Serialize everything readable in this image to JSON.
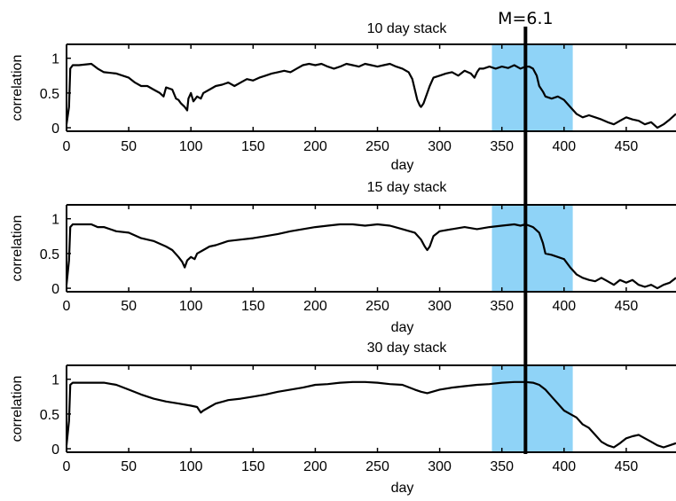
{
  "event": {
    "label": "M=6.1",
    "day": 369,
    "highlight_range": [
      342,
      407
    ],
    "highlight_color": "#8fd3f7",
    "line_color": "#000000"
  },
  "chart_data": [
    {
      "type": "line",
      "title": "10 day stack",
      "xlabel": "day",
      "ylabel": "correlation",
      "xlim": [
        0,
        490
      ],
      "ylim": [
        -0.05,
        1.2
      ],
      "xticks": [
        0,
        50,
        100,
        150,
        200,
        250,
        300,
        350,
        400,
        450
      ],
      "yticks": [
        0,
        0.5,
        1
      ],
      "ytick_labels": [
        "0",
        "0.5",
        "1"
      ],
      "series": [
        {
          "color": "#000000",
          "x": [
            0,
            2,
            3,
            5,
            10,
            20,
            25,
            30,
            40,
            50,
            55,
            60,
            65,
            70,
            75,
            78,
            80,
            85,
            88,
            90,
            92,
            95,
            97,
            98,
            100,
            102,
            105,
            108,
            110,
            115,
            120,
            125,
            130,
            135,
            140,
            145,
            150,
            155,
            160,
            165,
            170,
            175,
            180,
            185,
            190,
            195,
            200,
            205,
            210,
            215,
            220,
            225,
            230,
            235,
            240,
            245,
            250,
            255,
            260,
            265,
            270,
            275,
            278,
            280,
            282,
            284,
            285,
            287,
            290,
            292,
            295,
            300,
            305,
            310,
            315,
            320,
            325,
            328,
            330,
            332,
            335,
            340,
            345,
            350,
            355,
            360,
            365,
            369,
            372,
            375,
            378,
            380,
            383,
            385,
            390,
            395,
            400,
            405,
            410,
            415,
            420,
            425,
            430,
            435,
            440,
            445,
            450,
            455,
            460,
            465,
            470,
            475,
            480,
            485,
            490
          ],
          "y": [
            0.05,
            0.3,
            0.85,
            0.9,
            0.9,
            0.92,
            0.85,
            0.8,
            0.78,
            0.72,
            0.65,
            0.6,
            0.6,
            0.55,
            0.5,
            0.45,
            0.58,
            0.55,
            0.42,
            0.4,
            0.35,
            0.3,
            0.25,
            0.42,
            0.5,
            0.38,
            0.45,
            0.42,
            0.5,
            0.55,
            0.6,
            0.62,
            0.65,
            0.6,
            0.65,
            0.7,
            0.68,
            0.72,
            0.75,
            0.78,
            0.8,
            0.82,
            0.8,
            0.85,
            0.9,
            0.92,
            0.9,
            0.92,
            0.88,
            0.85,
            0.88,
            0.92,
            0.9,
            0.88,
            0.92,
            0.9,
            0.88,
            0.9,
            0.92,
            0.88,
            0.85,
            0.8,
            0.7,
            0.55,
            0.4,
            0.32,
            0.3,
            0.35,
            0.5,
            0.6,
            0.72,
            0.75,
            0.78,
            0.8,
            0.75,
            0.82,
            0.78,
            0.72,
            0.8,
            0.85,
            0.85,
            0.88,
            0.85,
            0.88,
            0.86,
            0.9,
            0.85,
            0.88,
            0.88,
            0.85,
            0.75,
            0.6,
            0.52,
            0.45,
            0.42,
            0.45,
            0.4,
            0.3,
            0.2,
            0.15,
            0.18,
            0.15,
            0.12,
            0.08,
            0.05,
            0.1,
            0.15,
            0.12,
            0.1,
            0.05,
            0.08,
            0.0,
            0.05,
            0.12,
            0.2
          ]
        }
      ]
    },
    {
      "type": "line",
      "title": "15 day stack",
      "xlabel": "day",
      "ylabel": "correlation",
      "xlim": [
        0,
        490
      ],
      "ylim": [
        -0.05,
        1.2
      ],
      "xticks": [
        0,
        50,
        100,
        150,
        200,
        250,
        300,
        350,
        400,
        450
      ],
      "yticks": [
        0,
        0.5,
        1
      ],
      "ytick_labels": [
        "0",
        "0.5",
        "1"
      ],
      "series": [
        {
          "color": "#000000",
          "x": [
            0,
            2,
            3,
            5,
            10,
            20,
            25,
            30,
            40,
            50,
            60,
            70,
            80,
            85,
            90,
            93,
            95,
            97,
            100,
            103,
            105,
            110,
            115,
            120,
            130,
            140,
            150,
            160,
            170,
            180,
            190,
            200,
            210,
            220,
            230,
            240,
            250,
            260,
            270,
            280,
            285,
            288,
            290,
            292,
            295,
            300,
            310,
            320,
            330,
            340,
            350,
            360,
            365,
            369,
            372,
            375,
            380,
            383,
            385,
            390,
            395,
            400,
            405,
            410,
            415,
            420,
            425,
            430,
            435,
            440,
            445,
            450,
            455,
            460,
            465,
            470,
            475,
            480,
            485,
            490
          ],
          "y": [
            0.05,
            0.4,
            0.88,
            0.92,
            0.92,
            0.92,
            0.88,
            0.88,
            0.82,
            0.8,
            0.72,
            0.68,
            0.6,
            0.55,
            0.45,
            0.38,
            0.3,
            0.4,
            0.45,
            0.42,
            0.5,
            0.55,
            0.6,
            0.62,
            0.68,
            0.7,
            0.72,
            0.75,
            0.78,
            0.82,
            0.85,
            0.88,
            0.9,
            0.92,
            0.92,
            0.9,
            0.92,
            0.9,
            0.85,
            0.8,
            0.7,
            0.6,
            0.55,
            0.6,
            0.75,
            0.82,
            0.85,
            0.88,
            0.85,
            0.88,
            0.9,
            0.92,
            0.9,
            0.92,
            0.9,
            0.88,
            0.8,
            0.65,
            0.5,
            0.48,
            0.45,
            0.42,
            0.3,
            0.2,
            0.15,
            0.12,
            0.1,
            0.15,
            0.1,
            0.05,
            0.12,
            0.08,
            0.12,
            0.05,
            0.02,
            0.05,
            0.0,
            0.05,
            0.08,
            0.15
          ]
        }
      ]
    },
    {
      "type": "line",
      "title": "30 day stack",
      "xlabel": "day",
      "ylabel": "correlation",
      "xlim": [
        0,
        490
      ],
      "ylim": [
        -0.05,
        1.2
      ],
      "xticks": [
        0,
        50,
        100,
        150,
        200,
        250,
        300,
        350,
        400,
        450
      ],
      "yticks": [
        0,
        0.5,
        1
      ],
      "ytick_labels": [
        "0",
        "0.5",
        "1"
      ],
      "series": [
        {
          "color": "#000000",
          "x": [
            0,
            2,
            3,
            5,
            10,
            20,
            30,
            40,
            50,
            60,
            70,
            80,
            90,
            100,
            105,
            108,
            110,
            115,
            120,
            130,
            140,
            150,
            160,
            170,
            180,
            190,
            200,
            210,
            220,
            230,
            240,
            250,
            260,
            270,
            280,
            285,
            290,
            300,
            310,
            320,
            330,
            340,
            350,
            360,
            369,
            375,
            380,
            385,
            390,
            395,
            400,
            405,
            410,
            415,
            420,
            425,
            430,
            435,
            440,
            445,
            450,
            455,
            460,
            465,
            470,
            475,
            480,
            485,
            490
          ],
          "y": [
            0.05,
            0.4,
            0.92,
            0.95,
            0.95,
            0.95,
            0.95,
            0.92,
            0.85,
            0.78,
            0.72,
            0.68,
            0.65,
            0.62,
            0.6,
            0.52,
            0.55,
            0.6,
            0.65,
            0.7,
            0.72,
            0.75,
            0.78,
            0.82,
            0.85,
            0.88,
            0.92,
            0.93,
            0.95,
            0.96,
            0.96,
            0.95,
            0.93,
            0.92,
            0.85,
            0.82,
            0.8,
            0.85,
            0.88,
            0.9,
            0.92,
            0.93,
            0.95,
            0.96,
            0.96,
            0.95,
            0.92,
            0.85,
            0.75,
            0.65,
            0.55,
            0.5,
            0.45,
            0.35,
            0.3,
            0.2,
            0.1,
            0.05,
            0.02,
            0.08,
            0.15,
            0.18,
            0.2,
            0.15,
            0.1,
            0.05,
            0.02,
            0.05,
            0.08
          ]
        }
      ]
    }
  ]
}
